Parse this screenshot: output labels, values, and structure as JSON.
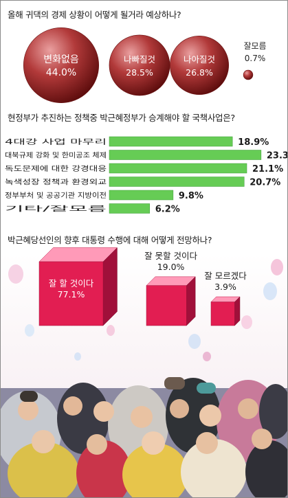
{
  "colors": {
    "bubble": "#b23a3a",
    "bar": "#66cc55",
    "bar_stroke": "#3c9a38",
    "cube_front": "#e21e52",
    "cube_top": "#ff9ab8",
    "cube_side": "#a0103a"
  },
  "q1": {
    "question": "올해 귀댁의 경제 상황이 어떻게 될거라 예상하나?"
  },
  "q2": {
    "question": "현정부가 추진하는 정책중 박근혜정부가 승계해야 할 국책사업은?"
  },
  "q3": {
    "question": "박근혜당선인의 향후 대통령 수행에 대해 어떻게 전망하나?"
  },
  "chart_data": [
    {
      "type": "bubble",
      "title": "올해 귀댁의 경제 상황이 어떻게 될거라 예상하나?",
      "categories": [
        "변화없음",
        "나빠질것",
        "나아질것",
        "잘모름"
      ],
      "values": [
        44.0,
        28.5,
        26.8,
        0.7
      ],
      "labels": [
        "44.0%",
        "28.5%",
        "26.8%",
        "0.7%"
      ]
    },
    {
      "type": "bar",
      "orientation": "horizontal",
      "title": "현정부가 추진하는 정책중 박근혜정부가 승계해야 할 국책사업은?",
      "categories": [
        "4대강 사업 마무리",
        "대북규제 강화 및 한미공조 체제",
        "독도문제에 대한 강경대응",
        "녹색성장 정책과 환경외교",
        "정부부처 및 공공기관 지방이전",
        "기타/잘모름"
      ],
      "values": [
        18.9,
        23.3,
        21.1,
        20.7,
        9.8,
        6.2
      ],
      "labels": [
        "18.9%",
        "23.3%",
        "21.1%",
        "20.7%",
        "9.8%",
        "6.2%"
      ],
      "xlim": [
        0,
        25
      ]
    },
    {
      "type": "cube",
      "title": "박근혜당선인의 향후 대통령 수행에 대해 어떻게 전망하나?",
      "categories": [
        "잘 할 것이다",
        "잘 못할 것이다",
        "잘 모르겠다"
      ],
      "values": [
        77.1,
        19.0,
        3.9
      ],
      "labels": [
        "77.1%",
        "19.0%",
        "3.9%"
      ]
    }
  ]
}
